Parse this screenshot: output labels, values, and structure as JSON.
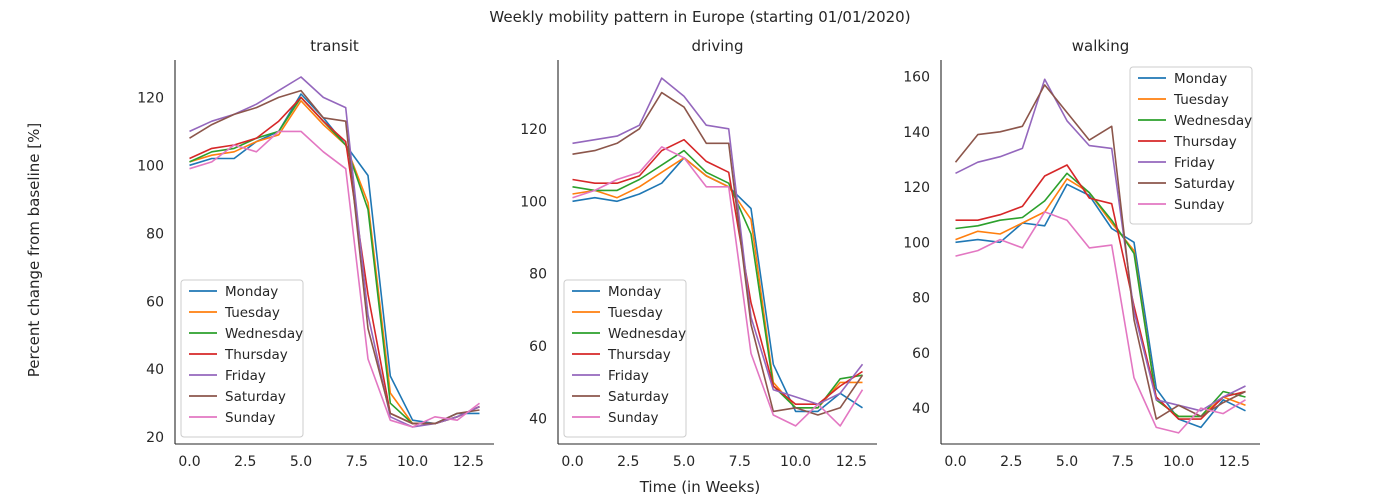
{
  "figure": {
    "suptitle": "Weekly mobility pattern in Europe (starting 01/01/2020)",
    "xlabel": "Time (in Weeks)",
    "ylabel": "Percent change from baseline [%]"
  },
  "colors": {
    "Monday": "#1f77b4",
    "Tuesday": "#ff7f0e",
    "Wednesday": "#2ca02c",
    "Thursday": "#d62728",
    "Friday": "#9467bd",
    "Saturday": "#8c564b",
    "Sunday": "#e377c2"
  },
  "chart_data": [
    {
      "type": "line",
      "title": "transit",
      "x": [
        0,
        1,
        2,
        3,
        4,
        5,
        6,
        7,
        8,
        9,
        10,
        11,
        12,
        13
      ],
      "xlim": [
        -0.65,
        13.65
      ],
      "ylim": [
        18,
        131
      ],
      "xticks": [
        0.0,
        2.5,
        5.0,
        7.5,
        10.0,
        12.5
      ],
      "xtick_labels": [
        "0.0",
        "2.5",
        "5.0",
        "7.5",
        "10.0",
        "12.5"
      ],
      "yticks": [
        20,
        40,
        60,
        80,
        100,
        120
      ],
      "legend": "lower-left",
      "grid": false,
      "series": [
        {
          "name": "Monday",
          "values": [
            100,
            102,
            102,
            107,
            110,
            121,
            114,
            106,
            97,
            38,
            25,
            24,
            27,
            27
          ]
        },
        {
          "name": "Tuesday",
          "values": [
            101,
            103,
            104,
            107,
            109,
            119,
            112,
            106,
            89,
            33,
            24,
            24,
            26,
            29
          ]
        },
        {
          "name": "Wednesday",
          "values": [
            101,
            104,
            105,
            108,
            110,
            120,
            113,
            106,
            87,
            30,
            24,
            24,
            26,
            29
          ]
        },
        {
          "name": "Thursday",
          "values": [
            102,
            105,
            106,
            108,
            113,
            120,
            113,
            107,
            62,
            27,
            24,
            24,
            26,
            29
          ]
        },
        {
          "name": "Friday",
          "values": [
            110,
            113,
            115,
            118,
            122,
            126,
            120,
            117,
            56,
            26,
            23,
            24,
            26,
            29
          ]
        },
        {
          "name": "Saturday",
          "values": [
            108,
            112,
            115,
            117,
            120,
            122,
            114,
            113,
            52,
            27,
            24,
            24,
            27,
            28
          ]
        },
        {
          "name": "Sunday",
          "values": [
            99,
            101,
            106,
            104,
            110,
            110,
            104,
            99,
            43,
            25,
            23,
            26,
            25,
            30
          ]
        }
      ]
    },
    {
      "type": "line",
      "title": "driving",
      "x": [
        0,
        1,
        2,
        3,
        4,
        5,
        6,
        7,
        8,
        9,
        10,
        11,
        12,
        13
      ],
      "xlim": [
        -0.65,
        13.65
      ],
      "ylim": [
        33,
        139
      ],
      "xticks": [
        0.0,
        2.5,
        5.0,
        7.5,
        10.0,
        12.5
      ],
      "xtick_labels": [
        "0.0",
        "2.5",
        "5.0",
        "7.5",
        "10.0",
        "12.5"
      ],
      "yticks": [
        40,
        60,
        80,
        100,
        120
      ],
      "legend": "lower-left",
      "grid": false,
      "series": [
        {
          "name": "Monday",
          "values": [
            100,
            101,
            100,
            102,
            105,
            112,
            107,
            104,
            98,
            55,
            42,
            42,
            47,
            43
          ]
        },
        {
          "name": "Tuesday",
          "values": [
            102,
            103,
            101,
            104,
            108,
            112,
            107,
            104,
            95,
            50,
            43,
            43,
            50,
            50
          ]
        },
        {
          "name": "Wednesday",
          "values": [
            104,
            103,
            103,
            106,
            110,
            114,
            108,
            105,
            91,
            49,
            43,
            43,
            51,
            52
          ]
        },
        {
          "name": "Thursday",
          "values": [
            106,
            105,
            105,
            107,
            114,
            117,
            111,
            108,
            72,
            49,
            44,
            44,
            49,
            53
          ]
        },
        {
          "name": "Friday",
          "values": [
            116,
            117,
            118,
            121,
            134,
            129,
            121,
            120,
            68,
            48,
            46,
            44,
            47,
            55
          ]
        },
        {
          "name": "Saturday",
          "values": [
            113,
            114,
            116,
            120,
            130,
            126,
            116,
            116,
            66,
            42,
            43,
            41,
            43,
            52
          ]
        },
        {
          "name": "Sunday",
          "values": [
            101,
            103,
            106,
            108,
            115,
            112,
            104,
            104,
            58,
            41,
            38,
            44,
            38,
            48
          ]
        }
      ]
    },
    {
      "type": "line",
      "title": "walking",
      "x": [
        0,
        1,
        2,
        3,
        4,
        5,
        6,
        7,
        8,
        9,
        10,
        11,
        12,
        13
      ],
      "xlim": [
        -0.65,
        13.65
      ],
      "ylim": [
        27,
        166
      ],
      "xticks": [
        0.0,
        2.5,
        5.0,
        7.5,
        10.0,
        12.5
      ],
      "xtick_labels": [
        "0.0",
        "2.5",
        "5.0",
        "7.5",
        "10.0",
        "12.5"
      ],
      "yticks": [
        40,
        60,
        80,
        100,
        120,
        140,
        160
      ],
      "legend": "upper-right",
      "grid": false,
      "series": [
        {
          "name": "Monday",
          "values": [
            100,
            101,
            100,
            107,
            106,
            121,
            117,
            105,
            100,
            47,
            36,
            33,
            43,
            39
          ]
        },
        {
          "name": "Tuesday",
          "values": [
            101,
            104,
            103,
            107,
            111,
            123,
            118,
            107,
            97,
            43,
            37,
            37,
            44,
            41
          ]
        },
        {
          "name": "Wednesday",
          "values": [
            105,
            106,
            108,
            109,
            115,
            125,
            118,
            108,
            96,
            43,
            37,
            37,
            46,
            44
          ]
        },
        {
          "name": "Thursday",
          "values": [
            108,
            108,
            110,
            113,
            124,
            128,
            116,
            114,
            77,
            44,
            36,
            36,
            44,
            46
          ]
        },
        {
          "name": "Friday",
          "values": [
            125,
            129,
            131,
            134,
            159,
            144,
            135,
            134,
            75,
            43,
            41,
            39,
            44,
            48
          ]
        },
        {
          "name": "Saturday",
          "values": [
            129,
            139,
            140,
            142,
            157,
            147,
            137,
            142,
            72,
            36,
            41,
            37,
            42,
            46
          ]
        },
        {
          "name": "Sunday",
          "values": [
            95,
            97,
            101,
            98,
            111,
            108,
            98,
            99,
            51,
            33,
            31,
            40,
            38,
            43
          ]
        }
      ]
    }
  ]
}
